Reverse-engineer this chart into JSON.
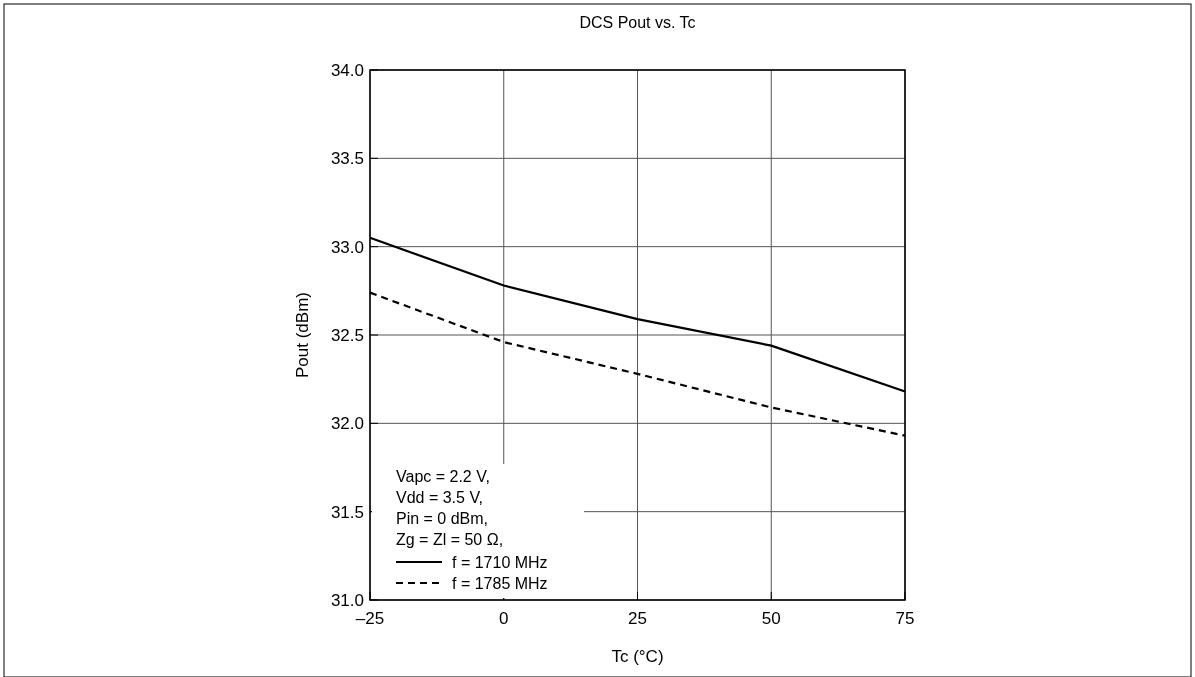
{
  "chart_data": {
    "type": "line",
    "title": "DCS  Pout vs. Tc",
    "xlabel": "Tc (°C)",
    "ylabel": "Pout (dBm)",
    "x": [
      -25,
      0,
      25,
      50,
      75
    ],
    "series": [
      {
        "name": "f = 1710 MHz",
        "color": "#000000",
        "values": [
          33.05,
          32.78,
          32.59,
          32.44,
          32.18
        ],
        "line_style": "solid"
      },
      {
        "name": "f = 1785 MHz",
        "color": "#000000",
        "values": [
          32.74,
          32.46,
          32.28,
          32.09,
          31.93
        ],
        "line_style": "dashed"
      }
    ],
    "xlim": [
      -25,
      75
    ],
    "xticks": [
      {
        "value": -25,
        "label": "–25"
      },
      0,
      25,
      50,
      75
    ],
    "ylim": [
      31,
      34
    ],
    "yticks": [
      {
        "value": 31,
        "label": "31.0"
      },
      31.5,
      {
        "value": 32,
        "label": "32.0"
      },
      32.5,
      {
        "value": 33,
        "label": "33.0"
      },
      33.5,
      {
        "value": 34,
        "label": "34.0"
      }
    ],
    "grid": true,
    "legend": "bottom left",
    "marker": "none",
    "annotations": [
      "Vapc = 2.2 V,",
      "Vdd = 3.5 V,",
      "Pin = 0 dBm,",
      "Zg = Zl = 50 Ω,"
    ]
  }
}
